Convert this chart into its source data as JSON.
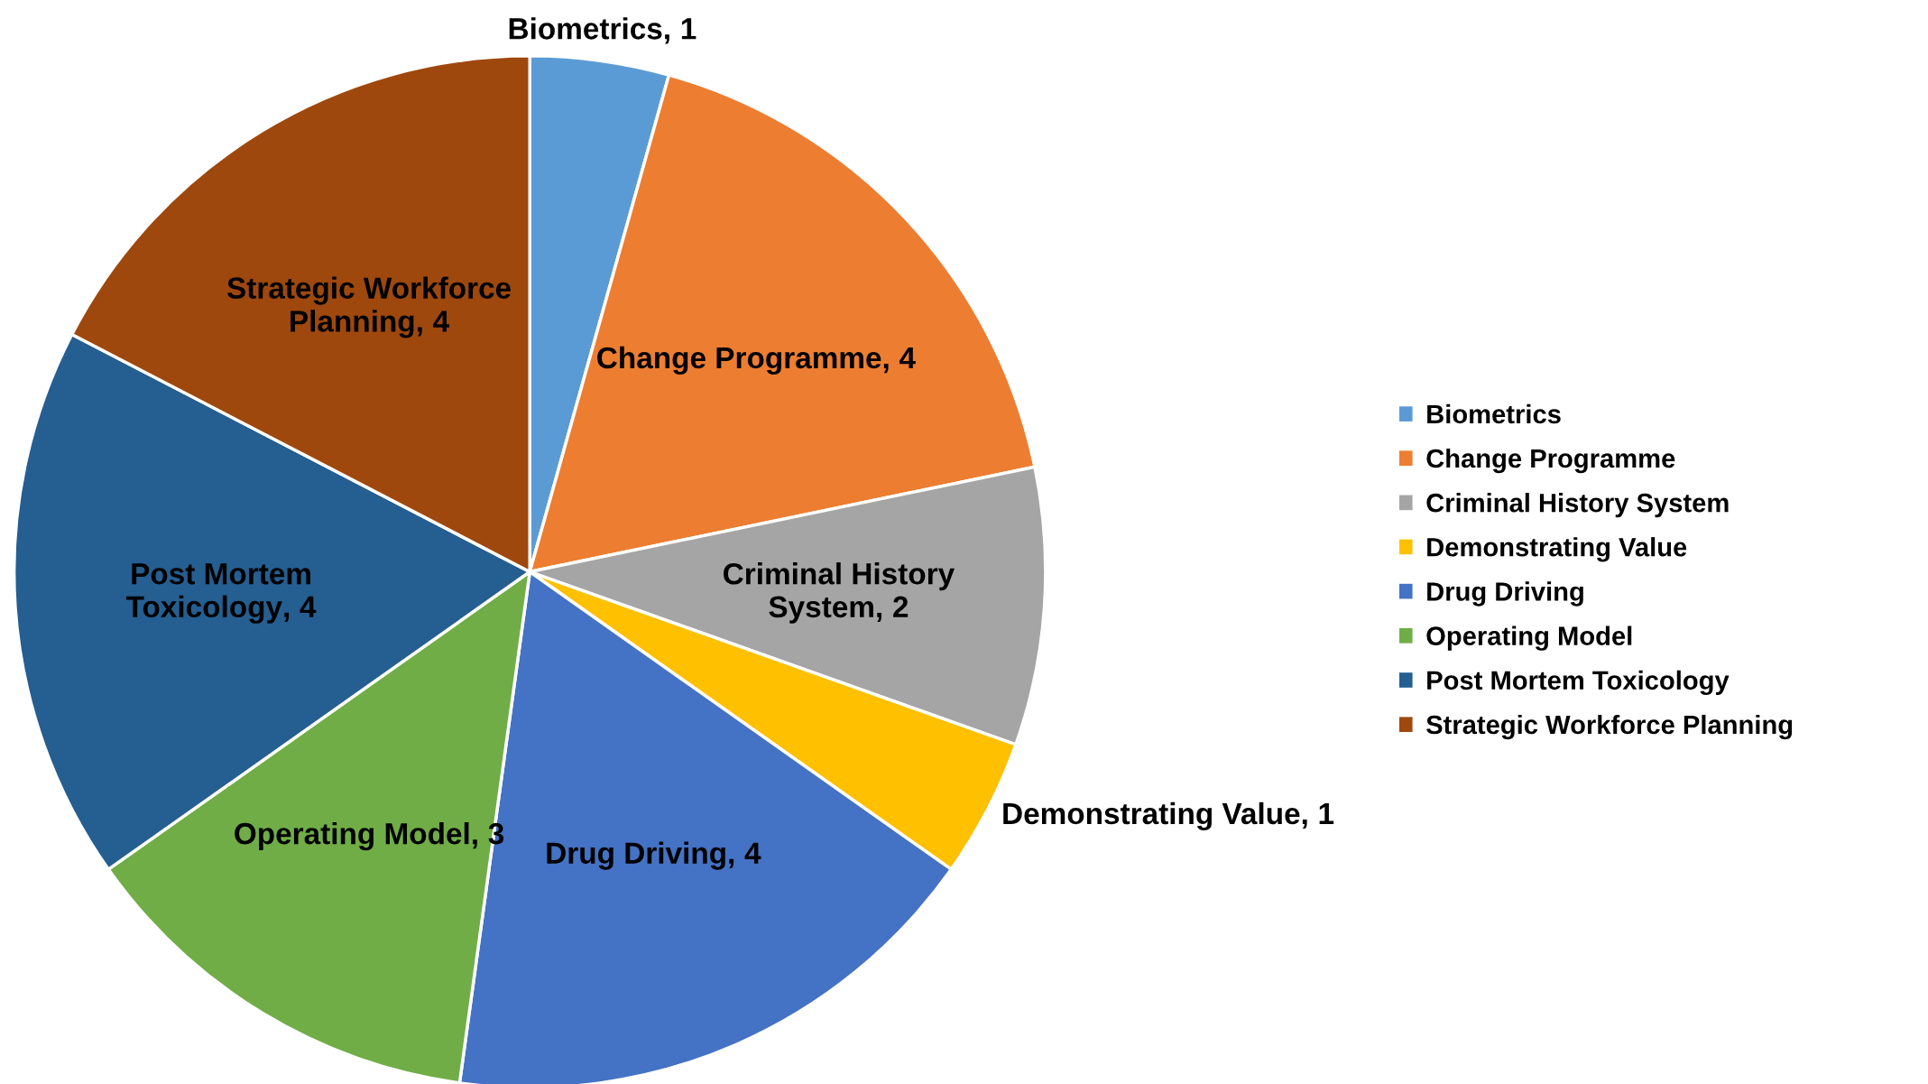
{
  "chart_data": {
    "type": "pie",
    "categories": [
      "Biometrics",
      "Change Programme",
      "Criminal History System",
      "Demonstrating Value",
      "Drug Driving",
      "Operating Model",
      "Post Mortem Toxicology",
      "Strategic Workforce Planning"
    ],
    "values": [
      1,
      4,
      2,
      1,
      4,
      3,
      4,
      4
    ],
    "colors": [
      "#5b9bd5",
      "#ed7d31",
      "#a5a5a5",
      "#ffc000",
      "#4472c4",
      "#70ad47",
      "#255e91",
      "#9e480e"
    ],
    "data_labels": true,
    "annotations": [
      ","
    ],
    "legend": "right"
  }
}
